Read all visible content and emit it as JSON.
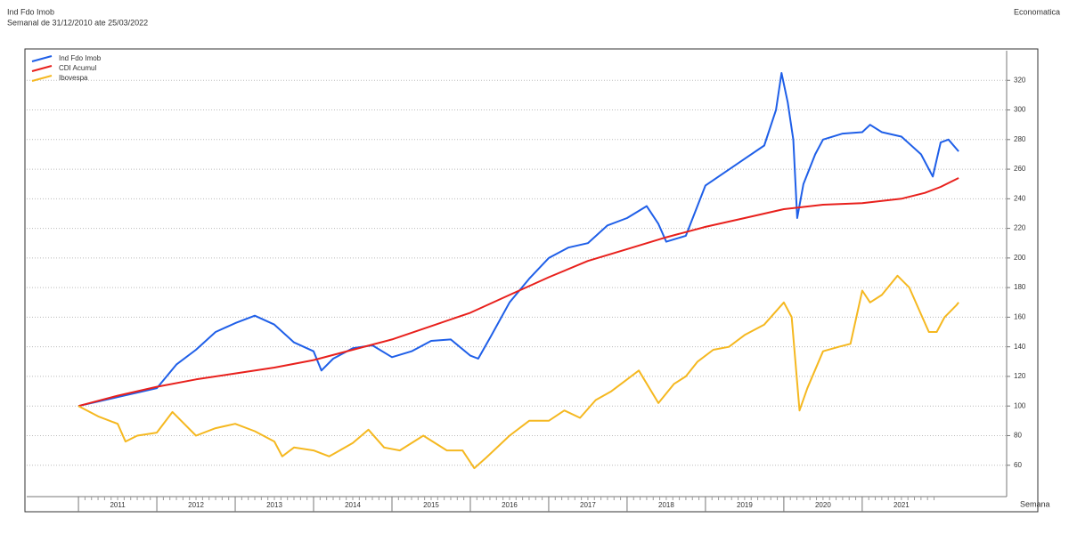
{
  "chart_data": {
    "type": "line",
    "title": "Ind Fdo Imob",
    "subtitle": "Semanal de 31/12/2010 ate 25/03/2022",
    "source": "Economatica",
    "xlabel": "Semana",
    "xlim": [
      2010.34,
      2022.82
    ],
    "xticks": [
      {
        "value": 2011.5,
        "label": "2011"
      },
      {
        "value": 2012.5,
        "label": "2012"
      },
      {
        "value": 2013.5,
        "label": "2013"
      },
      {
        "value": 2014.5,
        "label": "2014"
      },
      {
        "value": 2015.5,
        "label": "2015"
      },
      {
        "value": 2016.5,
        "label": "2016"
      },
      {
        "value": 2017.5,
        "label": "2017"
      },
      {
        "value": 2018.5,
        "label": "2018"
      },
      {
        "value": 2019.5,
        "label": "2019"
      },
      {
        "value": 2020.5,
        "label": "2020"
      },
      {
        "value": 2021.5,
        "label": "2021"
      }
    ],
    "ylim": [
      40,
      340
    ],
    "yticks": [
      60,
      80,
      100,
      120,
      140,
      160,
      180,
      200,
      220,
      240,
      260,
      280,
      300,
      320
    ],
    "grid": true,
    "legend": "top-left",
    "series": [
      {
        "name": "Ind Fdo Imob",
        "color": "#1f5fe8",
        "x": [
          2011.0,
          2011.5,
          2012.0,
          2012.25,
          2012.5,
          2012.75,
          2013.0,
          2013.25,
          2013.5,
          2013.75,
          2014.0,
          2014.1,
          2014.25,
          2014.5,
          2014.75,
          2015.0,
          2015.25,
          2015.5,
          2015.75,
          2016.0,
          2016.1,
          2016.25,
          2016.5,
          2016.75,
          2017.0,
          2017.25,
          2017.5,
          2017.75,
          2018.0,
          2018.25,
          2018.4,
          2018.5,
          2018.75,
          2019.0,
          2019.25,
          2019.5,
          2019.75,
          2019.9,
          2019.97,
          2020.05,
          2020.12,
          2020.17,
          2020.25,
          2020.4,
          2020.5,
          2020.75,
          2021.0,
          2021.1,
          2021.25,
          2021.5,
          2021.75,
          2021.9,
          2022.0,
          2022.1,
          2022.23
        ],
        "values": [
          100,
          106,
          112,
          128,
          138,
          150,
          156,
          161,
          155,
          143,
          137,
          124,
          132,
          139,
          141,
          133,
          137,
          144,
          145,
          134,
          132,
          146,
          170,
          186,
          200,
          207,
          210,
          222,
          227,
          235,
          223,
          211,
          215,
          249,
          258,
          267,
          276,
          300,
          325,
          305,
          280,
          227,
          250,
          270,
          280,
          284,
          285,
          290,
          285,
          282,
          270,
          255,
          278,
          280,
          272
        ]
      },
      {
        "name": "CDI Acumul",
        "color": "#e8201c",
        "x": [
          2011.0,
          2011.5,
          2012.0,
          2012.5,
          2013.0,
          2013.5,
          2014.0,
          2014.5,
          2015.0,
          2015.5,
          2016.0,
          2016.5,
          2017.0,
          2017.5,
          2018.0,
          2018.5,
          2019.0,
          2019.5,
          2020.0,
          2020.5,
          2021.0,
          2021.5,
          2021.8,
          2022.0,
          2022.23
        ],
        "values": [
          100,
          107,
          113,
          118,
          122,
          126,
          131,
          138,
          145,
          154,
          163,
          175,
          187,
          198,
          206,
          214,
          221,
          227,
          233,
          236,
          237,
          240,
          244,
          248,
          254
        ]
      },
      {
        "name": "Ibovespa",
        "color": "#f5b820",
        "x": [
          2011.0,
          2011.25,
          2011.5,
          2011.6,
          2011.75,
          2012.0,
          2012.2,
          2012.5,
          2012.75,
          2013.0,
          2013.25,
          2013.5,
          2013.6,
          2013.75,
          2014.0,
          2014.2,
          2014.5,
          2014.7,
          2014.9,
          2015.1,
          2015.4,
          2015.7,
          2015.9,
          2016.05,
          2016.2,
          2016.5,
          2016.75,
          2017.0,
          2017.2,
          2017.4,
          2017.6,
          2017.8,
          2018.0,
          2018.15,
          2018.4,
          2018.6,
          2018.75,
          2018.9,
          2019.1,
          2019.3,
          2019.5,
          2019.75,
          2020.0,
          2020.1,
          2020.2,
          2020.3,
          2020.5,
          2020.7,
          2020.85,
          2021.0,
          2021.1,
          2021.25,
          2021.45,
          2021.6,
          2021.75,
          2021.85,
          2021.95,
          2022.05,
          2022.2,
          2022.23
        ],
        "values": [
          100,
          93,
          88,
          76,
          80,
          82,
          96,
          80,
          85,
          88,
          83,
          76,
          66,
          72,
          70,
          66,
          75,
          84,
          72,
          70,
          80,
          70,
          70,
          58,
          65,
          80,
          90,
          90,
          97,
          92,
          104,
          110,
          118,
          124,
          102,
          115,
          120,
          130,
          138,
          140,
          148,
          155,
          170,
          160,
          97,
          112,
          137,
          140,
          142,
          178,
          170,
          175,
          188,
          180,
          162,
          150,
          150,
          160,
          168,
          170
        ]
      }
    ]
  }
}
